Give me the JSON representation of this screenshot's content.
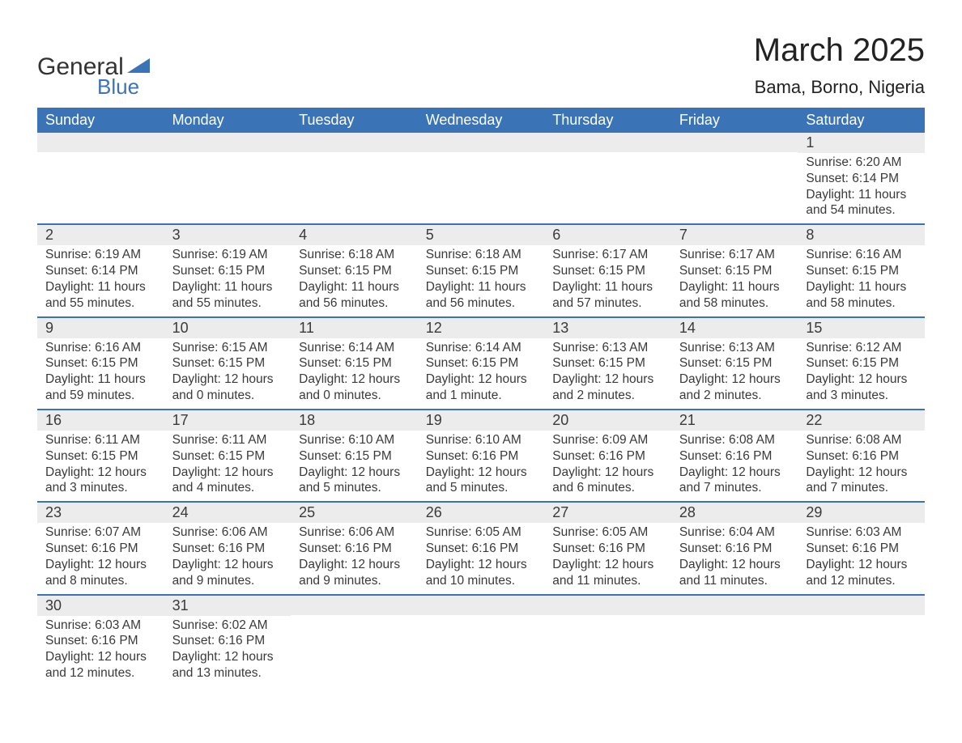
{
  "logo": {
    "word1": "General",
    "word2": "Blue",
    "mark_color": "#3a74b7"
  },
  "header": {
    "title": "March 2025",
    "location": "Bama, Borno, Nigeria"
  },
  "colors": {
    "header_bg": "#3a74b7",
    "row_divider": "#3a74b7",
    "daynum_bg": "#ececec",
    "text": "#3a3a3a"
  },
  "day_names": [
    "Sunday",
    "Monday",
    "Tuesday",
    "Wednesday",
    "Thursday",
    "Friday",
    "Saturday"
  ],
  "weeks": [
    [
      null,
      null,
      null,
      null,
      null,
      null,
      {
        "n": "1",
        "sr": "Sunrise: 6:20 AM",
        "ss": "Sunset: 6:14 PM",
        "d1": "Daylight: 11 hours",
        "d2": "and 54 minutes."
      }
    ],
    [
      {
        "n": "2",
        "sr": "Sunrise: 6:19 AM",
        "ss": "Sunset: 6:14 PM",
        "d1": "Daylight: 11 hours",
        "d2": "and 55 minutes."
      },
      {
        "n": "3",
        "sr": "Sunrise: 6:19 AM",
        "ss": "Sunset: 6:15 PM",
        "d1": "Daylight: 11 hours",
        "d2": "and 55 minutes."
      },
      {
        "n": "4",
        "sr": "Sunrise: 6:18 AM",
        "ss": "Sunset: 6:15 PM",
        "d1": "Daylight: 11 hours",
        "d2": "and 56 minutes."
      },
      {
        "n": "5",
        "sr": "Sunrise: 6:18 AM",
        "ss": "Sunset: 6:15 PM",
        "d1": "Daylight: 11 hours",
        "d2": "and 56 minutes."
      },
      {
        "n": "6",
        "sr": "Sunrise: 6:17 AM",
        "ss": "Sunset: 6:15 PM",
        "d1": "Daylight: 11 hours",
        "d2": "and 57 minutes."
      },
      {
        "n": "7",
        "sr": "Sunrise: 6:17 AM",
        "ss": "Sunset: 6:15 PM",
        "d1": "Daylight: 11 hours",
        "d2": "and 58 minutes."
      },
      {
        "n": "8",
        "sr": "Sunrise: 6:16 AM",
        "ss": "Sunset: 6:15 PM",
        "d1": "Daylight: 11 hours",
        "d2": "and 58 minutes."
      }
    ],
    [
      {
        "n": "9",
        "sr": "Sunrise: 6:16 AM",
        "ss": "Sunset: 6:15 PM",
        "d1": "Daylight: 11 hours",
        "d2": "and 59 minutes."
      },
      {
        "n": "10",
        "sr": "Sunrise: 6:15 AM",
        "ss": "Sunset: 6:15 PM",
        "d1": "Daylight: 12 hours",
        "d2": "and 0 minutes."
      },
      {
        "n": "11",
        "sr": "Sunrise: 6:14 AM",
        "ss": "Sunset: 6:15 PM",
        "d1": "Daylight: 12 hours",
        "d2": "and 0 minutes."
      },
      {
        "n": "12",
        "sr": "Sunrise: 6:14 AM",
        "ss": "Sunset: 6:15 PM",
        "d1": "Daylight: 12 hours",
        "d2": "and 1 minute."
      },
      {
        "n": "13",
        "sr": "Sunrise: 6:13 AM",
        "ss": "Sunset: 6:15 PM",
        "d1": "Daylight: 12 hours",
        "d2": "and 2 minutes."
      },
      {
        "n": "14",
        "sr": "Sunrise: 6:13 AM",
        "ss": "Sunset: 6:15 PM",
        "d1": "Daylight: 12 hours",
        "d2": "and 2 minutes."
      },
      {
        "n": "15",
        "sr": "Sunrise: 6:12 AM",
        "ss": "Sunset: 6:15 PM",
        "d1": "Daylight: 12 hours",
        "d2": "and 3 minutes."
      }
    ],
    [
      {
        "n": "16",
        "sr": "Sunrise: 6:11 AM",
        "ss": "Sunset: 6:15 PM",
        "d1": "Daylight: 12 hours",
        "d2": "and 3 minutes."
      },
      {
        "n": "17",
        "sr": "Sunrise: 6:11 AM",
        "ss": "Sunset: 6:15 PM",
        "d1": "Daylight: 12 hours",
        "d2": "and 4 minutes."
      },
      {
        "n": "18",
        "sr": "Sunrise: 6:10 AM",
        "ss": "Sunset: 6:15 PM",
        "d1": "Daylight: 12 hours",
        "d2": "and 5 minutes."
      },
      {
        "n": "19",
        "sr": "Sunrise: 6:10 AM",
        "ss": "Sunset: 6:16 PM",
        "d1": "Daylight: 12 hours",
        "d2": "and 5 minutes."
      },
      {
        "n": "20",
        "sr": "Sunrise: 6:09 AM",
        "ss": "Sunset: 6:16 PM",
        "d1": "Daylight: 12 hours",
        "d2": "and 6 minutes."
      },
      {
        "n": "21",
        "sr": "Sunrise: 6:08 AM",
        "ss": "Sunset: 6:16 PM",
        "d1": "Daylight: 12 hours",
        "d2": "and 7 minutes."
      },
      {
        "n": "22",
        "sr": "Sunrise: 6:08 AM",
        "ss": "Sunset: 6:16 PM",
        "d1": "Daylight: 12 hours",
        "d2": "and 7 minutes."
      }
    ],
    [
      {
        "n": "23",
        "sr": "Sunrise: 6:07 AM",
        "ss": "Sunset: 6:16 PM",
        "d1": "Daylight: 12 hours",
        "d2": "and 8 minutes."
      },
      {
        "n": "24",
        "sr": "Sunrise: 6:06 AM",
        "ss": "Sunset: 6:16 PM",
        "d1": "Daylight: 12 hours",
        "d2": "and 9 minutes."
      },
      {
        "n": "25",
        "sr": "Sunrise: 6:06 AM",
        "ss": "Sunset: 6:16 PM",
        "d1": "Daylight: 12 hours",
        "d2": "and 9 minutes."
      },
      {
        "n": "26",
        "sr": "Sunrise: 6:05 AM",
        "ss": "Sunset: 6:16 PM",
        "d1": "Daylight: 12 hours",
        "d2": "and 10 minutes."
      },
      {
        "n": "27",
        "sr": "Sunrise: 6:05 AM",
        "ss": "Sunset: 6:16 PM",
        "d1": "Daylight: 12 hours",
        "d2": "and 11 minutes."
      },
      {
        "n": "28",
        "sr": "Sunrise: 6:04 AM",
        "ss": "Sunset: 6:16 PM",
        "d1": "Daylight: 12 hours",
        "d2": "and 11 minutes."
      },
      {
        "n": "29",
        "sr": "Sunrise: 6:03 AM",
        "ss": "Sunset: 6:16 PM",
        "d1": "Daylight: 12 hours",
        "d2": "and 12 minutes."
      }
    ],
    [
      {
        "n": "30",
        "sr": "Sunrise: 6:03 AM",
        "ss": "Sunset: 6:16 PM",
        "d1": "Daylight: 12 hours",
        "d2": "and 12 minutes."
      },
      {
        "n": "31",
        "sr": "Sunrise: 6:02 AM",
        "ss": "Sunset: 6:16 PM",
        "d1": "Daylight: 12 hours",
        "d2": "and 13 minutes."
      },
      null,
      null,
      null,
      null,
      null
    ]
  ]
}
